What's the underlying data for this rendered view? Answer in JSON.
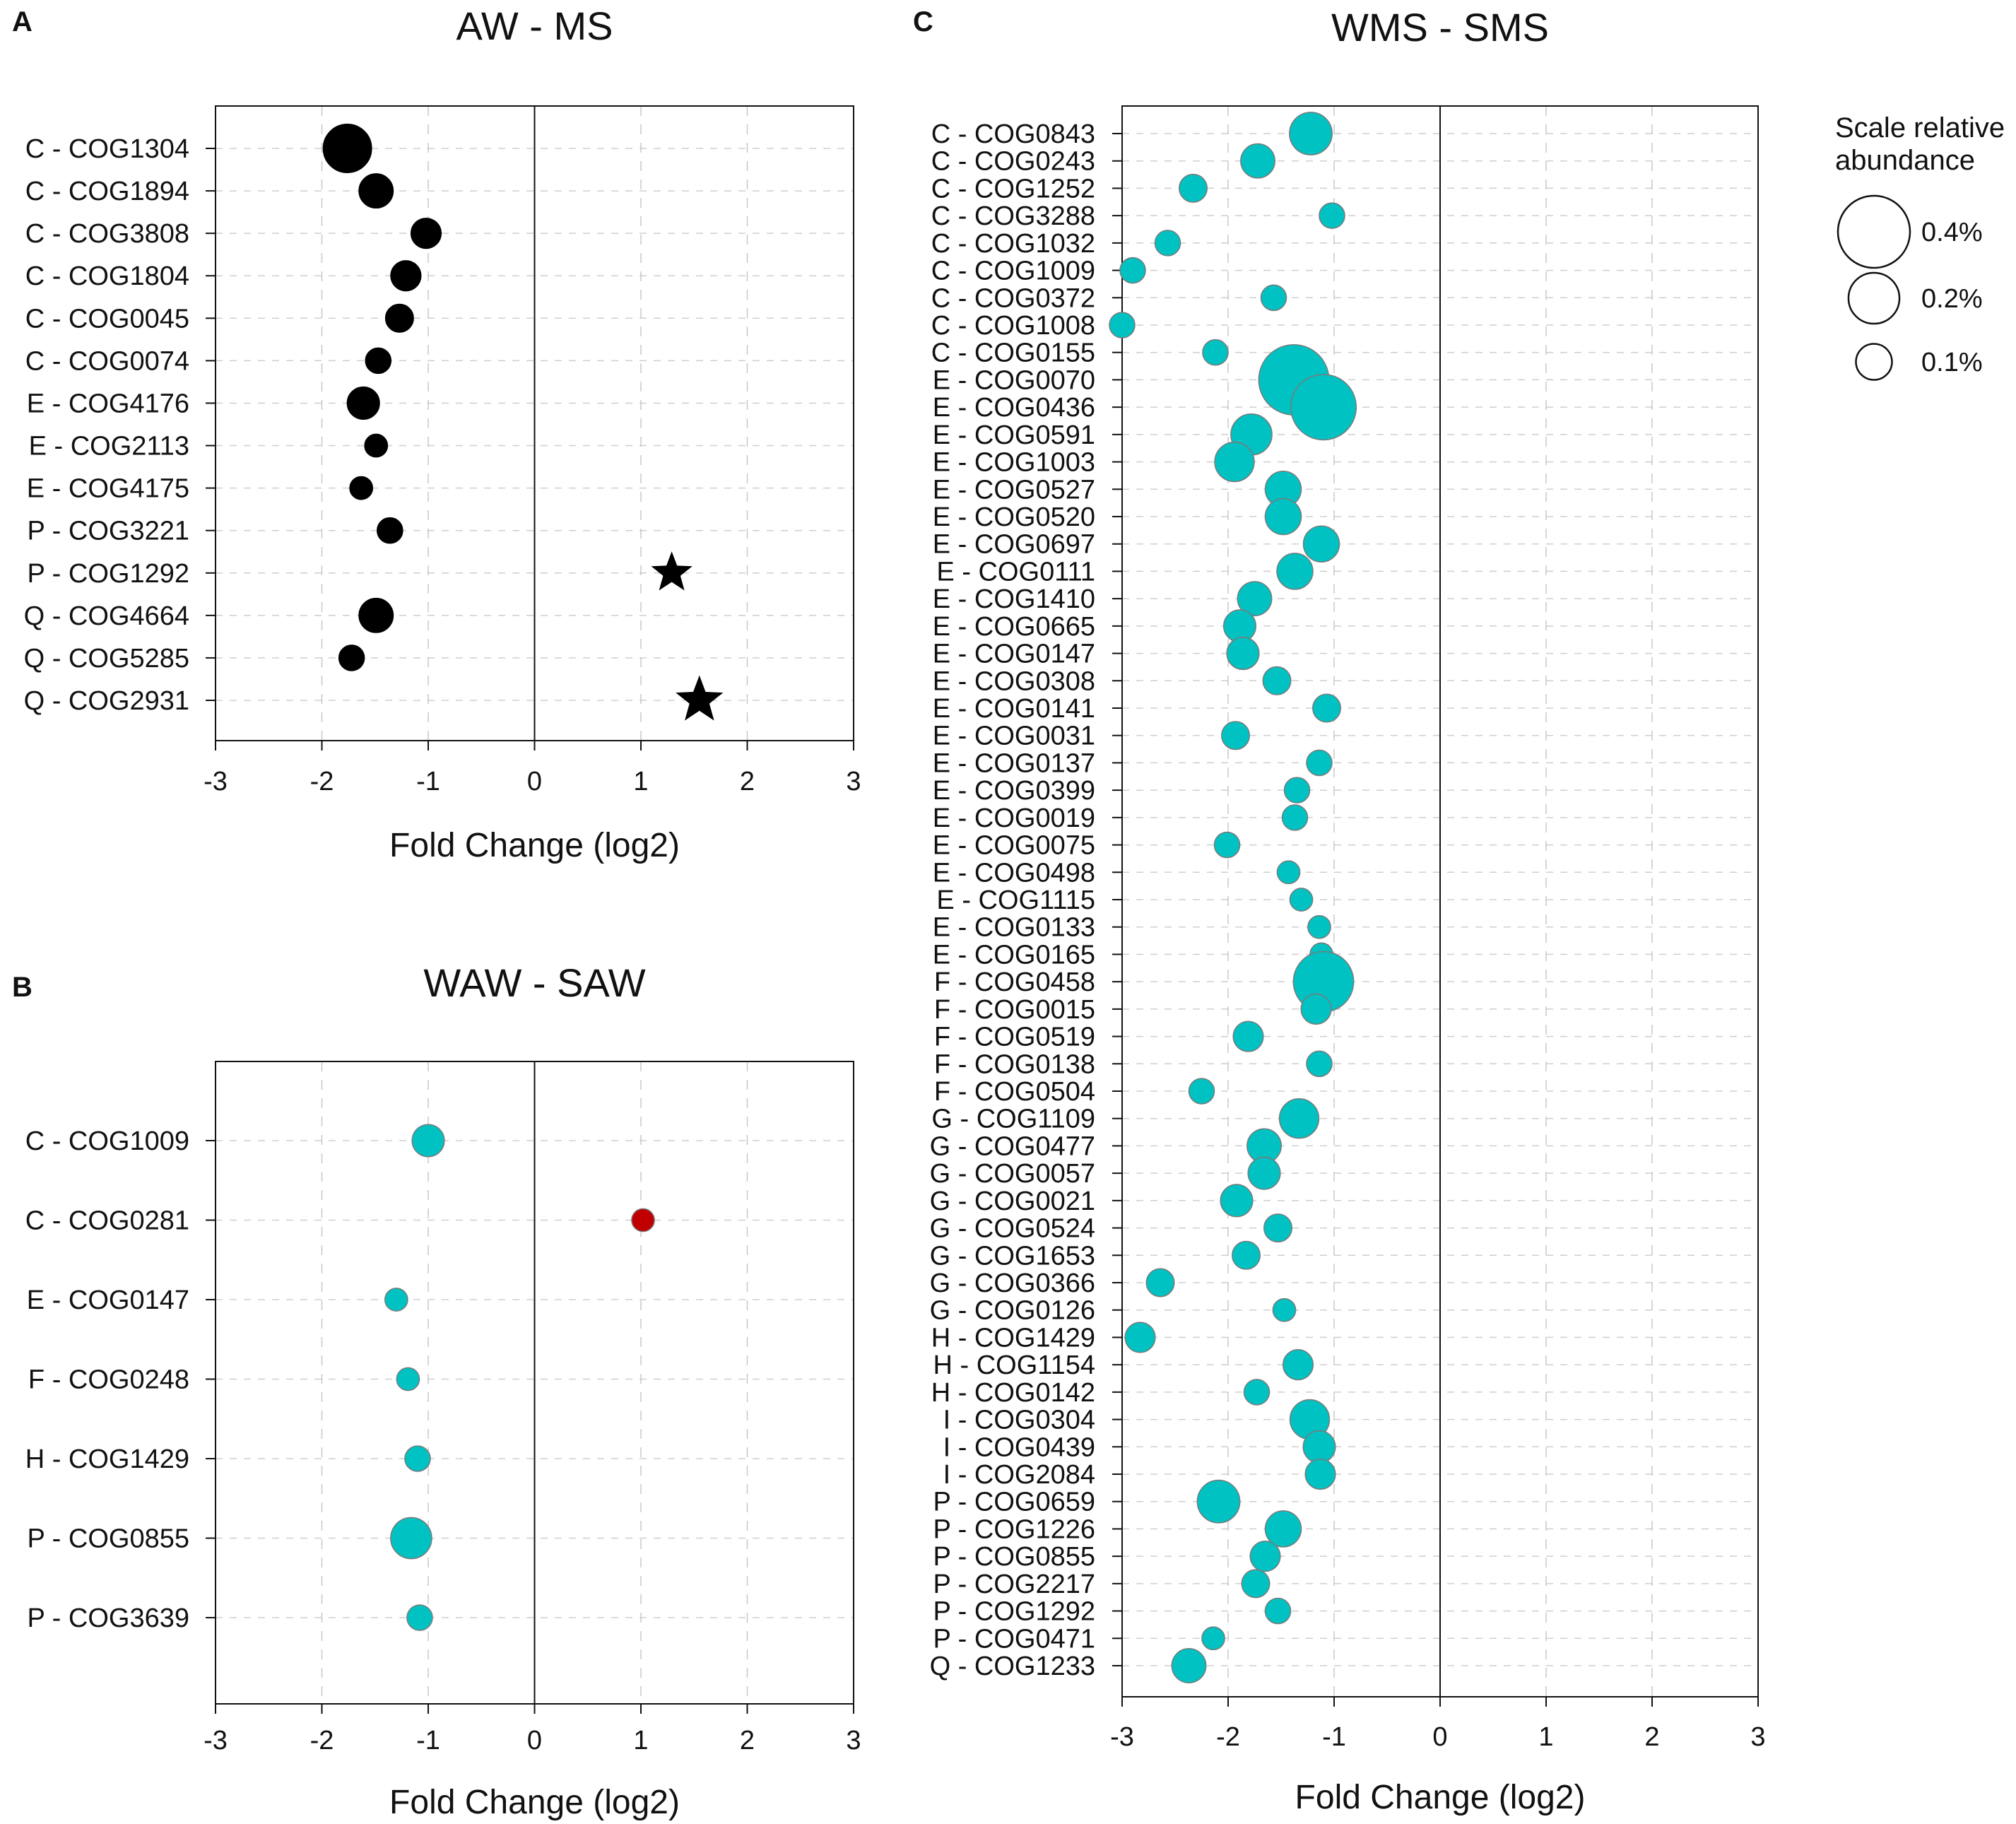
{
  "colors": {
    "black_marker": "#000000",
    "teal_marker": "#00c2c2",
    "red_marker": "#c00000",
    "marker_stroke": "#7a7a7a",
    "grid": "#bbbbbb"
  },
  "legend": {
    "title": [
      "Scale relative",
      "abundance"
    ],
    "items": [
      {
        "label": "0.4%",
        "value": 0.4
      },
      {
        "label": "0.2%",
        "value": 0.2
      },
      {
        "label": "0.1%",
        "value": 0.1
      }
    ]
  },
  "chart_data": [
    {
      "panel": "A",
      "type": "scatter",
      "title": "AW - MS",
      "xlabel": "Fold Change (log2)",
      "xlim": [
        -3,
        3
      ],
      "xticks": [
        "-3",
        "-2",
        "-1",
        "0",
        "1",
        "2",
        "3"
      ],
      "categories": [
        "C - COG1304",
        "C - COG1894",
        "C - COG3808",
        "C - COG1804",
        "C - COG0045",
        "C - COG0074",
        "E - COG4176",
        "E - COG2113",
        "E - COG4175",
        "P - COG3221",
        "P - COG1292",
        "Q - COG4664",
        "Q - COG5285",
        "Q - COG2931"
      ],
      "points": [
        {
          "x": -1.76,
          "abundance": 0.18,
          "marker": "circle",
          "color": "black"
        },
        {
          "x": -1.49,
          "abundance": 0.09,
          "marker": "circle",
          "color": "black"
        },
        {
          "x": -1.02,
          "abundance": 0.07,
          "marker": "circle",
          "color": "black"
        },
        {
          "x": -1.21,
          "abundance": 0.07,
          "marker": "circle",
          "color": "black"
        },
        {
          "x": -1.27,
          "abundance": 0.06,
          "marker": "circle",
          "color": "black"
        },
        {
          "x": -1.47,
          "abundance": 0.05,
          "marker": "circle",
          "color": "black"
        },
        {
          "x": -1.61,
          "abundance": 0.08,
          "marker": "circle",
          "color": "black"
        },
        {
          "x": -1.49,
          "abundance": 0.04,
          "marker": "circle",
          "color": "black"
        },
        {
          "x": -1.63,
          "abundance": 0.04,
          "marker": "circle",
          "color": "black"
        },
        {
          "x": -1.36,
          "abundance": 0.05,
          "marker": "circle",
          "color": "black"
        },
        {
          "x": 1.29,
          "abundance": 0.06,
          "marker": "star",
          "color": "black"
        },
        {
          "x": -1.49,
          "abundance": 0.09,
          "marker": "circle",
          "color": "black"
        },
        {
          "x": -1.72,
          "abundance": 0.05,
          "marker": "circle",
          "color": "black"
        },
        {
          "x": 1.55,
          "abundance": 0.08,
          "marker": "star",
          "color": "black"
        }
      ]
    },
    {
      "panel": "B",
      "type": "scatter",
      "title": "WAW - SAW",
      "xlabel": "Fold Change (log2)",
      "xlim": [
        -3,
        3
      ],
      "xticks": [
        "-3",
        "-2",
        "-1",
        "0",
        "1",
        "2",
        "3"
      ],
      "categories": [
        "C - COG1009",
        "C - COG0281",
        "E - COG0147",
        "F - COG0248",
        "H - COG1429",
        "P - COG0855",
        "P - COG3639"
      ],
      "points": [
        {
          "x": -1.0,
          "abundance": 0.08,
          "marker": "circle",
          "color": "teal"
        },
        {
          "x": 1.02,
          "abundance": 0.04,
          "marker": "circle",
          "color": "red"
        },
        {
          "x": -1.3,
          "abundance": 0.04,
          "marker": "circle",
          "color": "teal"
        },
        {
          "x": -1.19,
          "abundance": 0.04,
          "marker": "circle",
          "color": "teal"
        },
        {
          "x": -1.1,
          "abundance": 0.05,
          "marker": "circle",
          "color": "teal"
        },
        {
          "x": -1.16,
          "abundance": 0.13,
          "marker": "circle",
          "color": "teal"
        },
        {
          "x": -1.08,
          "abundance": 0.05,
          "marker": "circle",
          "color": "teal"
        }
      ]
    },
    {
      "panel": "C",
      "type": "scatter",
      "title": "WMS - SMS",
      "xlabel": "Fold Change (log2)",
      "xlim": [
        -3,
        3
      ],
      "xticks": [
        "-3",
        "-2",
        "-1",
        "0",
        "1",
        "2",
        "3"
      ],
      "categories": [
        "C - COG0843",
        "C - COG0243",
        "C - COG1252",
        "C - COG3288",
        "C - COG1032",
        "C - COG1009",
        "C - COG0372",
        "C - COG1008",
        "C - COG0155",
        "E - COG0070",
        "E - COG0436",
        "E - COG0591",
        "E - COG1003",
        "E - COG0527",
        "E - COG0520",
        "E - COG0697",
        "E - COG0111",
        "E - COG1410",
        "E - COG0665",
        "E - COG0147",
        "E - COG0308",
        "E - COG0141",
        "E - COG0031",
        "E - COG0137",
        "E - COG0399",
        "E - COG0019",
        "E - COG0075",
        "E - COG0498",
        "E - COG1115",
        "E - COG0133",
        "E - COG0165",
        "F - COG0458",
        "F - COG0015",
        "F - COG0519",
        "F - COG0138",
        "F - COG0504",
        "G - COG1109",
        "G - COG0477",
        "G - COG0057",
        "G - COG0021",
        "G - COG0524",
        "G - COG1653",
        "G - COG0366",
        "G - COG0126",
        "H - COG1429",
        "H - COG1154",
        "H - COG0142",
        "I - COG0304",
        "I - COG0439",
        "I - COG2084",
        "P - COG0659",
        "P - COG1226",
        "P - COG0855",
        "P - COG2217",
        "P - COG1292",
        "P - COG0471",
        "Q - COG1233"
      ],
      "points": [
        {
          "x": -1.22,
          "abundance": 0.14,
          "color": "teal"
        },
        {
          "x": -1.72,
          "abundance": 0.09,
          "color": "teal"
        },
        {
          "x": -2.33,
          "abundance": 0.06,
          "color": "teal"
        },
        {
          "x": -1.02,
          "abundance": 0.05,
          "color": "teal"
        },
        {
          "x": -2.57,
          "abundance": 0.05,
          "color": "teal"
        },
        {
          "x": -2.9,
          "abundance": 0.05,
          "color": "teal"
        },
        {
          "x": -1.57,
          "abundance": 0.05,
          "color": "teal"
        },
        {
          "x": -3.0,
          "abundance": 0.05,
          "color": "teal"
        },
        {
          "x": -2.12,
          "abundance": 0.05,
          "color": "teal"
        },
        {
          "x": -1.38,
          "abundance": 0.38,
          "color": "teal"
        },
        {
          "x": -1.1,
          "abundance": 0.33,
          "color": "teal"
        },
        {
          "x": -1.78,
          "abundance": 0.13,
          "color": "teal"
        },
        {
          "x": -1.94,
          "abundance": 0.12,
          "color": "teal"
        },
        {
          "x": -1.48,
          "abundance": 0.1,
          "color": "teal"
        },
        {
          "x": -1.48,
          "abundance": 0.1,
          "color": "teal"
        },
        {
          "x": -1.12,
          "abundance": 0.1,
          "color": "teal"
        },
        {
          "x": -1.37,
          "abundance": 0.1,
          "color": "teal"
        },
        {
          "x": -1.75,
          "abundance": 0.09,
          "color": "teal"
        },
        {
          "x": -1.89,
          "abundance": 0.08,
          "color": "teal"
        },
        {
          "x": -1.86,
          "abundance": 0.08,
          "color": "teal"
        },
        {
          "x": -1.54,
          "abundance": 0.06,
          "color": "teal"
        },
        {
          "x": -1.07,
          "abundance": 0.06,
          "color": "teal"
        },
        {
          "x": -1.93,
          "abundance": 0.06,
          "color": "teal"
        },
        {
          "x": -1.14,
          "abundance": 0.05,
          "color": "teal"
        },
        {
          "x": -1.35,
          "abundance": 0.05,
          "color": "teal"
        },
        {
          "x": -1.37,
          "abundance": 0.05,
          "color": "teal"
        },
        {
          "x": -2.01,
          "abundance": 0.05,
          "color": "teal"
        },
        {
          "x": -1.43,
          "abundance": 0.04,
          "color": "teal"
        },
        {
          "x": -1.31,
          "abundance": 0.04,
          "color": "teal"
        },
        {
          "x": -1.14,
          "abundance": 0.04,
          "color": "teal"
        },
        {
          "x": -1.12,
          "abundance": 0.04,
          "color": "teal"
        },
        {
          "x": -1.1,
          "abundance": 0.28,
          "color": "teal"
        },
        {
          "x": -1.17,
          "abundance": 0.07,
          "color": "teal"
        },
        {
          "x": -1.81,
          "abundance": 0.07,
          "color": "teal"
        },
        {
          "x": -1.14,
          "abundance": 0.05,
          "color": "teal"
        },
        {
          "x": -2.25,
          "abundance": 0.05,
          "color": "teal"
        },
        {
          "x": -1.33,
          "abundance": 0.12,
          "color": "teal"
        },
        {
          "x": -1.66,
          "abundance": 0.09,
          "color": "teal"
        },
        {
          "x": -1.66,
          "abundance": 0.08,
          "color": "teal"
        },
        {
          "x": -1.92,
          "abundance": 0.08,
          "color": "teal"
        },
        {
          "x": -1.53,
          "abundance": 0.06,
          "color": "teal"
        },
        {
          "x": -1.83,
          "abundance": 0.06,
          "color": "teal"
        },
        {
          "x": -2.64,
          "abundance": 0.06,
          "color": "teal"
        },
        {
          "x": -1.47,
          "abundance": 0.04,
          "color": "teal"
        },
        {
          "x": -2.83,
          "abundance": 0.07,
          "color": "teal"
        },
        {
          "x": -1.34,
          "abundance": 0.07,
          "color": "teal"
        },
        {
          "x": -1.73,
          "abundance": 0.05,
          "color": "teal"
        },
        {
          "x": -1.23,
          "abundance": 0.12,
          "color": "teal"
        },
        {
          "x": -1.14,
          "abundance": 0.08,
          "color": "teal"
        },
        {
          "x": -1.13,
          "abundance": 0.07,
          "color": "teal"
        },
        {
          "x": -2.09,
          "abundance": 0.14,
          "color": "teal"
        },
        {
          "x": -1.48,
          "abundance": 0.1,
          "color": "teal"
        },
        {
          "x": -1.65,
          "abundance": 0.07,
          "color": "teal"
        },
        {
          "x": -1.74,
          "abundance": 0.06,
          "color": "teal"
        },
        {
          "x": -1.53,
          "abundance": 0.05,
          "color": "teal"
        },
        {
          "x": -2.14,
          "abundance": 0.04,
          "color": "teal"
        },
        {
          "x": -2.37,
          "abundance": 0.09,
          "color": "teal"
        }
      ]
    }
  ]
}
